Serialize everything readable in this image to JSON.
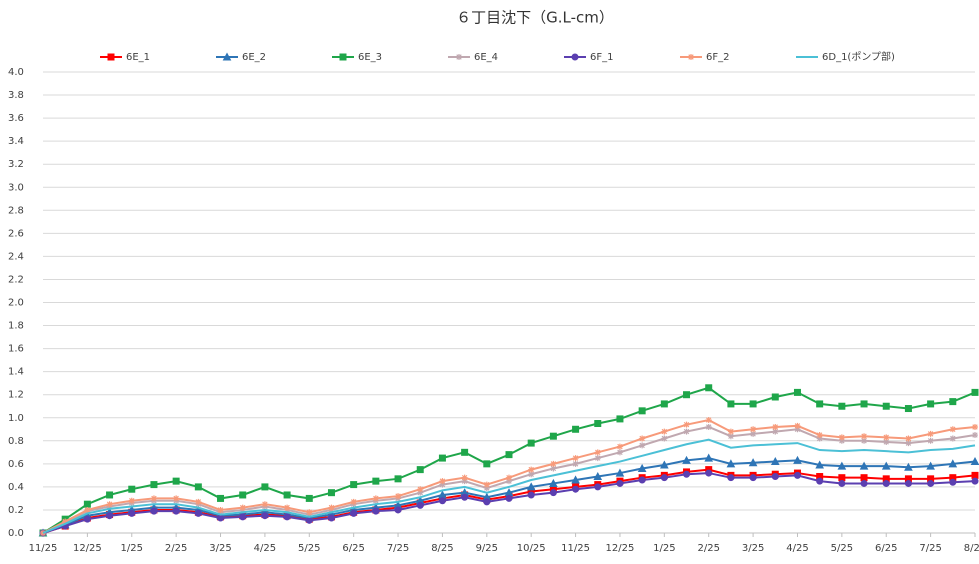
{
  "chart_data": {
    "type": "line",
    "title": "６丁目沈下（G.L-cm）",
    "x": [
      0,
      0.5,
      1,
      1.5,
      2,
      2.5,
      3,
      3.5,
      4,
      4.5,
      5,
      5.5,
      6,
      6.5,
      7,
      7.5,
      8,
      8.5,
      9,
      9.5,
      10,
      10.5,
      11,
      11.5,
      12,
      12.5,
      13,
      13.5,
      14,
      14.5,
      15,
      15.5,
      16,
      16.5,
      17,
      17.5,
      18,
      18.5,
      19,
      19.5,
      20,
      20.5,
      21
    ],
    "xlim": [
      0,
      21
    ],
    "xticks": [
      {
        "value": 0,
        "label": "11/25"
      },
      {
        "value": 1,
        "label": "12/25"
      },
      {
        "value": 2,
        "label": "1/25"
      },
      {
        "value": 3,
        "label": "2/25"
      },
      {
        "value": 4,
        "label": "3/25"
      },
      {
        "value": 5,
        "label": "4/25"
      },
      {
        "value": 6,
        "label": "5/25"
      },
      {
        "value": 7,
        "label": "6/25"
      },
      {
        "value": 8,
        "label": "7/25"
      },
      {
        "value": 9,
        "label": "8/25"
      },
      {
        "value": 10,
        "label": "9/25"
      },
      {
        "value": 11,
        "label": "10/25"
      },
      {
        "value": 12,
        "label": "11/25"
      },
      {
        "value": 13,
        "label": "12/25"
      },
      {
        "value": 14,
        "label": "1/25"
      },
      {
        "value": 15,
        "label": "2/25"
      },
      {
        "value": 16,
        "label": "3/25"
      },
      {
        "value": 17,
        "label": "4/25"
      },
      {
        "value": 18,
        "label": "5/25"
      },
      {
        "value": 19,
        "label": "6/25"
      },
      {
        "value": 20,
        "label": "7/25"
      },
      {
        "value": 21,
        "label": "8/25"
      }
    ],
    "ylim": [
      0,
      4
    ],
    "yticks": [
      {
        "value": 0,
        "label": "0.0"
      },
      0.2,
      0.4,
      0.6,
      0.8,
      {
        "value": 1,
        "label": "1.0"
      },
      1.2,
      1.4,
      1.6,
      1.8,
      {
        "value": 2,
        "label": "2.0"
      },
      2.2,
      2.4,
      2.6,
      2.8,
      {
        "value": 3,
        "label": "3.0"
      },
      3.2,
      3.4,
      3.6,
      3.8,
      {
        "value": 4,
        "label": "4.0"
      }
    ],
    "grid": true,
    "legend": "top",
    "series": [
      {
        "name": "6E_1",
        "color": "#ff0000",
        "marker": "square",
        "values": [
          0,
          0.06,
          0.13,
          0.16,
          0.18,
          0.2,
          0.2,
          0.18,
          0.14,
          0.15,
          0.16,
          0.15,
          0.12,
          0.14,
          0.18,
          0.2,
          0.22,
          0.26,
          0.3,
          0.33,
          0.29,
          0.32,
          0.36,
          0.38,
          0.4,
          0.42,
          0.45,
          0.48,
          0.5,
          0.53,
          0.55,
          0.5,
          0.5,
          0.51,
          0.52,
          0.49,
          0.48,
          0.48,
          0.47,
          0.47,
          0.47,
          0.48,
          0.5
        ]
      },
      {
        "name": "6E_2",
        "color": "#2e75b6",
        "marker": "triangle",
        "values": [
          0,
          0.07,
          0.15,
          0.18,
          0.2,
          0.22,
          0.22,
          0.2,
          0.15,
          0.16,
          0.18,
          0.16,
          0.13,
          0.16,
          0.2,
          0.22,
          0.24,
          0.28,
          0.33,
          0.35,
          0.31,
          0.35,
          0.4,
          0.43,
          0.46,
          0.49,
          0.52,
          0.56,
          0.59,
          0.63,
          0.65,
          0.6,
          0.61,
          0.62,
          0.63,
          0.59,
          0.58,
          0.58,
          0.58,
          0.57,
          0.58,
          0.6,
          0.62
        ]
      },
      {
        "name": "6E_3",
        "color": "#1fa64a",
        "marker": "square",
        "values": [
          0,
          0.12,
          0.25,
          0.33,
          0.38,
          0.42,
          0.45,
          0.4,
          0.3,
          0.33,
          0.4,
          0.33,
          0.3,
          0.35,
          0.42,
          0.45,
          0.47,
          0.55,
          0.65,
          0.7,
          0.6,
          0.68,
          0.78,
          0.84,
          0.9,
          0.95,
          0.99,
          1.06,
          1.12,
          1.2,
          1.26,
          1.12,
          1.12,
          1.18,
          1.22,
          1.12,
          1.1,
          1.12,
          1.1,
          1.08,
          1.12,
          1.14,
          1.22
        ]
      },
      {
        "name": "6E_4",
        "color": "#c0a8b0",
        "marker": "star",
        "values": [
          0,
          0.09,
          0.19,
          0.23,
          0.26,
          0.28,
          0.28,
          0.25,
          0.18,
          0.2,
          0.23,
          0.2,
          0.16,
          0.2,
          0.25,
          0.28,
          0.3,
          0.35,
          0.42,
          0.45,
          0.39,
          0.45,
          0.51,
          0.56,
          0.6,
          0.65,
          0.7,
          0.76,
          0.82,
          0.88,
          0.92,
          0.84,
          0.86,
          0.88,
          0.9,
          0.82,
          0.8,
          0.8,
          0.79,
          0.78,
          0.8,
          0.82,
          0.85
        ]
      },
      {
        "name": "6F_1",
        "color": "#5b3fb0",
        "marker": "circle",
        "values": [
          0,
          0.06,
          0.12,
          0.15,
          0.17,
          0.19,
          0.19,
          0.17,
          0.13,
          0.14,
          0.15,
          0.14,
          0.11,
          0.13,
          0.17,
          0.19,
          0.2,
          0.24,
          0.28,
          0.31,
          0.27,
          0.3,
          0.33,
          0.35,
          0.38,
          0.4,
          0.43,
          0.46,
          0.48,
          0.51,
          0.52,
          0.48,
          0.48,
          0.49,
          0.5,
          0.45,
          0.43,
          0.43,
          0.43,
          0.43,
          0.43,
          0.44,
          0.45
        ]
      },
      {
        "name": "6F_2",
        "color": "#f79a7a",
        "marker": "star",
        "values": [
          0,
          0.1,
          0.2,
          0.25,
          0.28,
          0.3,
          0.3,
          0.27,
          0.2,
          0.22,
          0.25,
          0.22,
          0.18,
          0.22,
          0.27,
          0.3,
          0.32,
          0.38,
          0.45,
          0.48,
          0.42,
          0.48,
          0.55,
          0.6,
          0.65,
          0.7,
          0.75,
          0.82,
          0.88,
          0.94,
          0.98,
          0.88,
          0.9,
          0.92,
          0.93,
          0.85,
          0.83,
          0.84,
          0.83,
          0.82,
          0.86,
          0.9,
          0.92
        ]
      },
      {
        "name": "6D_1(ポンプ部)",
        "color": "#4bc0d6",
        "marker": "none",
        "values": [
          0,
          0.08,
          0.17,
          0.21,
          0.23,
          0.25,
          0.25,
          0.22,
          0.16,
          0.18,
          0.2,
          0.18,
          0.14,
          0.18,
          0.22,
          0.25,
          0.27,
          0.31,
          0.37,
          0.4,
          0.35,
          0.4,
          0.46,
          0.5,
          0.54,
          0.58,
          0.62,
          0.67,
          0.72,
          0.77,
          0.81,
          0.74,
          0.76,
          0.77,
          0.78,
          0.72,
          0.71,
          0.72,
          0.71,
          0.7,
          0.72,
          0.73,
          0.76
        ]
      }
    ]
  }
}
